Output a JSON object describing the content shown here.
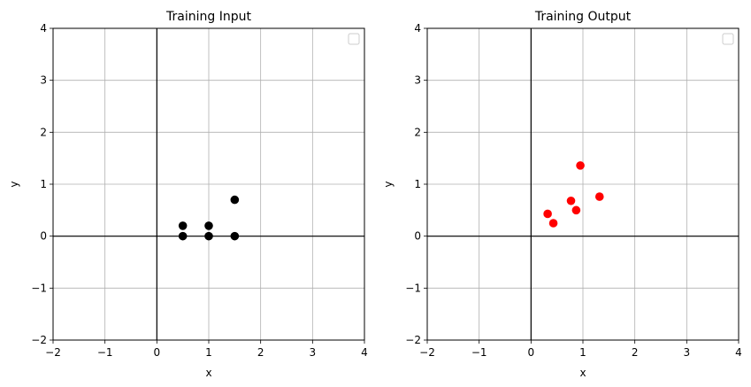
{
  "chart_data": [
    {
      "type": "scatter",
      "title": "Training Input",
      "xlabel": "x",
      "ylabel": "y",
      "xlim": [
        -2,
        4
      ],
      "ylim": [
        -2,
        4
      ],
      "xticks": [
        -2,
        -1,
        0,
        1,
        2,
        3,
        4
      ],
      "yticks": [
        -2,
        -1,
        0,
        1,
        2,
        3,
        4
      ],
      "xtick_labels": [
        "−2",
        "−1",
        "0",
        "1",
        "2",
        "3",
        "4"
      ],
      "ytick_labels": [
        "−2",
        "−1",
        "0",
        "1",
        "2",
        "3",
        "4"
      ],
      "grid": true,
      "legend": "top-right",
      "color": "#000000",
      "points": [
        {
          "x": 0.5,
          "y": 0.2
        },
        {
          "x": 0.5,
          "y": 0.0
        },
        {
          "x": 1.0,
          "y": 0.2
        },
        {
          "x": 1.0,
          "y": 0.0
        },
        {
          "x": 1.5,
          "y": 0.7
        },
        {
          "x": 1.5,
          "y": 0.0
        }
      ]
    },
    {
      "type": "scatter",
      "title": "Training Output",
      "xlabel": "x",
      "ylabel": "y",
      "xlim": [
        -2,
        4
      ],
      "ylim": [
        -2,
        4
      ],
      "xticks": [
        -2,
        -1,
        0,
        1,
        2,
        3,
        4
      ],
      "yticks": [
        -2,
        -1,
        0,
        1,
        2,
        3,
        4
      ],
      "xtick_labels": [
        "−2",
        "−1",
        "0",
        "1",
        "2",
        "3",
        "4"
      ],
      "ytick_labels": [
        "−2",
        "−1",
        "0",
        "1",
        "2",
        "3",
        "4"
      ],
      "grid": true,
      "legend": "top-right",
      "color": "#ff0000",
      "points": [
        {
          "x": 0.32,
          "y": 0.43
        },
        {
          "x": 0.43,
          "y": 0.25
        },
        {
          "x": 0.77,
          "y": 0.68
        },
        {
          "x": 0.87,
          "y": 0.5
        },
        {
          "x": 0.95,
          "y": 1.36
        },
        {
          "x": 1.32,
          "y": 0.76
        }
      ]
    }
  ]
}
